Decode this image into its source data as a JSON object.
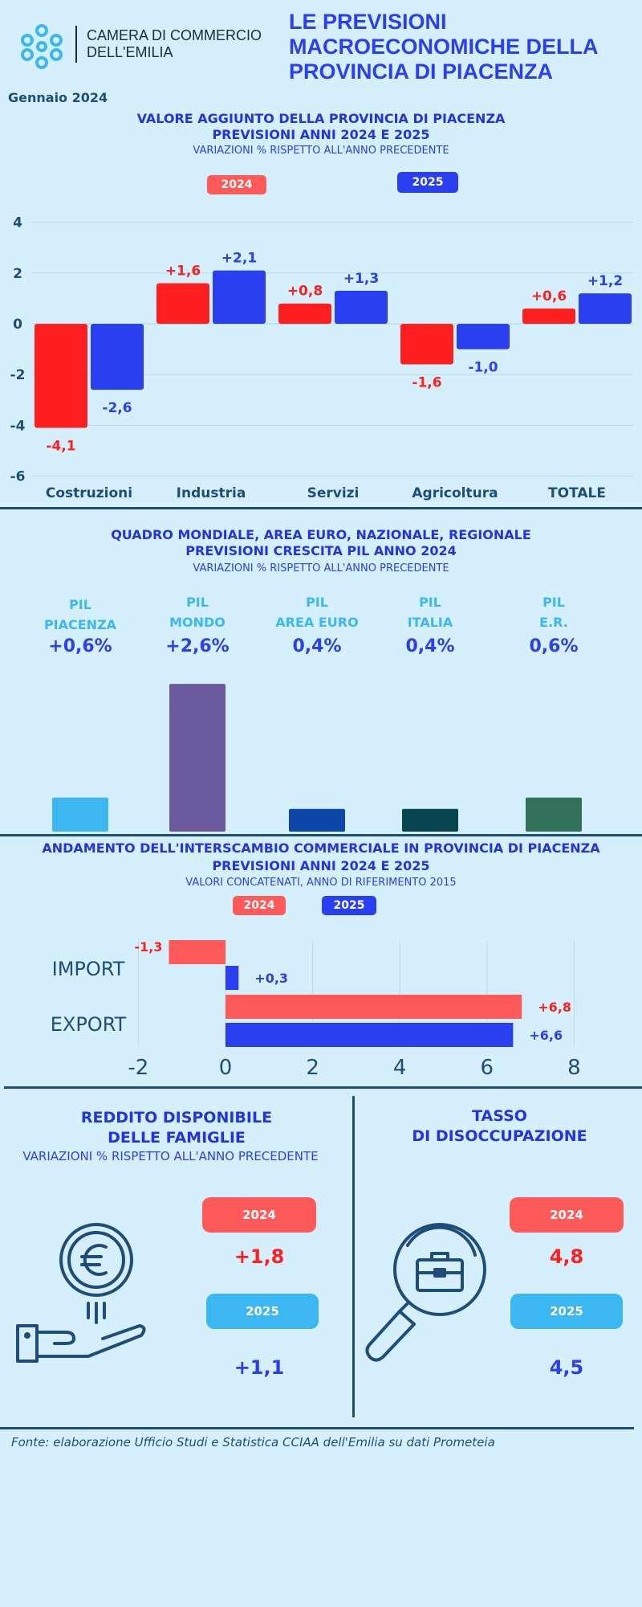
{
  "header": {
    "logo_line1": "CAMERA DI COMMERCIO",
    "logo_line2": "DELL'EMILIA",
    "title_line1": "LE PREVISIONI",
    "title_line2": "MACROECONOMICHE DELLA",
    "title_line3": "PROVINCIA DI PIACENZA",
    "date": "Gennaio  2024"
  },
  "colors": {
    "red": "#ff1f1f",
    "blue": "#2a3ff0",
    "lightblue": "#3cb7f2",
    "salmon": "#ff5a5a",
    "navy": "#1f4d7a"
  },
  "chart_data": [
    {
      "type": "bar",
      "title_line1": "VALORE AGGIUNTO DELLA PROVINCIA DI PIACENZA",
      "title_line2": "PREVISIONI ANNI 2024 E 2025",
      "subtitle": "VARIAZIONI % RISPETTO ALL'ANNO PRECEDENTE",
      "categories": [
        "Costruzioni",
        "Industria",
        "Servizi",
        "Agricoltura",
        "TOTALE"
      ],
      "series": [
        {
          "name": "2024",
          "values": [
            -4.1,
            1.6,
            0.8,
            -1.6,
            0.6
          ],
          "labels": [
            "-4,1",
            "+1,6",
            "+0,8",
            "-1,6",
            "+0,6"
          ],
          "color": "#ff1f1f"
        },
        {
          "name": "2025",
          "values": [
            -2.6,
            2.1,
            1.3,
            -1.0,
            1.2
          ],
          "labels": [
            "-2,6",
            "+2,1",
            "+1,3",
            "-1,0",
            "+1,2"
          ],
          "color": "#2a3ff0"
        }
      ],
      "y_ticks": [
        "4",
        "2",
        "0",
        "-2",
        "-4",
        "-6"
      ],
      "ylim": [
        -6,
        4
      ],
      "grid": true
    },
    {
      "type": "bar",
      "title_line1": "QUADRO MONDIALE, AREA EURO, NAZIONALE, REGIONALE",
      "title_line2": "PREVISIONI CRESCITA PIL ANNO 2024",
      "subtitle": "VARIAZIONI % RISPETTO ALL'ANNO PRECEDENTE",
      "categories": [
        {
          "line1": "PIL",
          "line2": "PIACENZA"
        },
        {
          "line1": "PIL",
          "line2": "MONDO"
        },
        {
          "line1": "PIL",
          "line2": "AREA EURO"
        },
        {
          "line1": "PIL",
          "line2": "ITALIA"
        },
        {
          "line1": "PIL",
          "line2": "E.R."
        }
      ],
      "values": [
        0.6,
        2.6,
        0.4,
        0.4,
        0.6
      ],
      "labels": [
        "+0,6%",
        "+2,6%",
        "0,4%",
        "0,4%",
        "0,6%"
      ],
      "colors": [
        "#3cb7f2",
        "#6b5b9e",
        "#0d47a8",
        "#064550",
        "#33725a"
      ]
    },
    {
      "type": "bar",
      "orientation": "horizontal",
      "title_line1": "ANDAMENTO DELL'INTERSCAMBIO COMMERCIALE IN PROVINCIA DI PIACENZA",
      "title_line2": "PREVISIONI ANNI  2024 E 2025",
      "subtitle": "VALORI CONCATENATI, ANNO DI RIFERIMENTO 2015",
      "categories": [
        "IMPORT",
        "EXPORT"
      ],
      "series": [
        {
          "name": "2024",
          "values": [
            -1.3,
            6.8
          ],
          "labels": [
            "-1,3",
            "+6,8"
          ],
          "color": "#ff5a5a"
        },
        {
          "name": "2025",
          "values": [
            0.3,
            6.6
          ],
          "labels": [
            "+0,3",
            "+6,6"
          ],
          "color": "#2a3ff0"
        }
      ],
      "x_ticks": [
        "-2",
        "0",
        "2",
        "4",
        "6",
        "8"
      ],
      "xlim": [
        -2,
        8
      ],
      "grid": true
    }
  ],
  "reddito": {
    "title_line1": "REDDITO DISPONIBILE",
    "title_line2": "DELLE FAMIGLIE",
    "subtitle": "VARIAZIONI % RISPETTO ALL'ANNO PRECEDENTE",
    "year1": "2024",
    "value1": "+1,8",
    "year2": "2025",
    "value2": "+1,1",
    "icon": "euro-hand-icon"
  },
  "disoccupazione": {
    "title_line1": "TASSO",
    "title_line2": "DI DISOCCUPAZIONE",
    "year1": "2024",
    "value1": "4,8",
    "year2": "2025",
    "value2": "4,5",
    "icon": "magnifier-briefcase-icon"
  },
  "footer": {
    "source": "Fonte: elaborazione Ufficio Studi e Statistica CCIAA dell'Emilia su dati Prometeia"
  }
}
